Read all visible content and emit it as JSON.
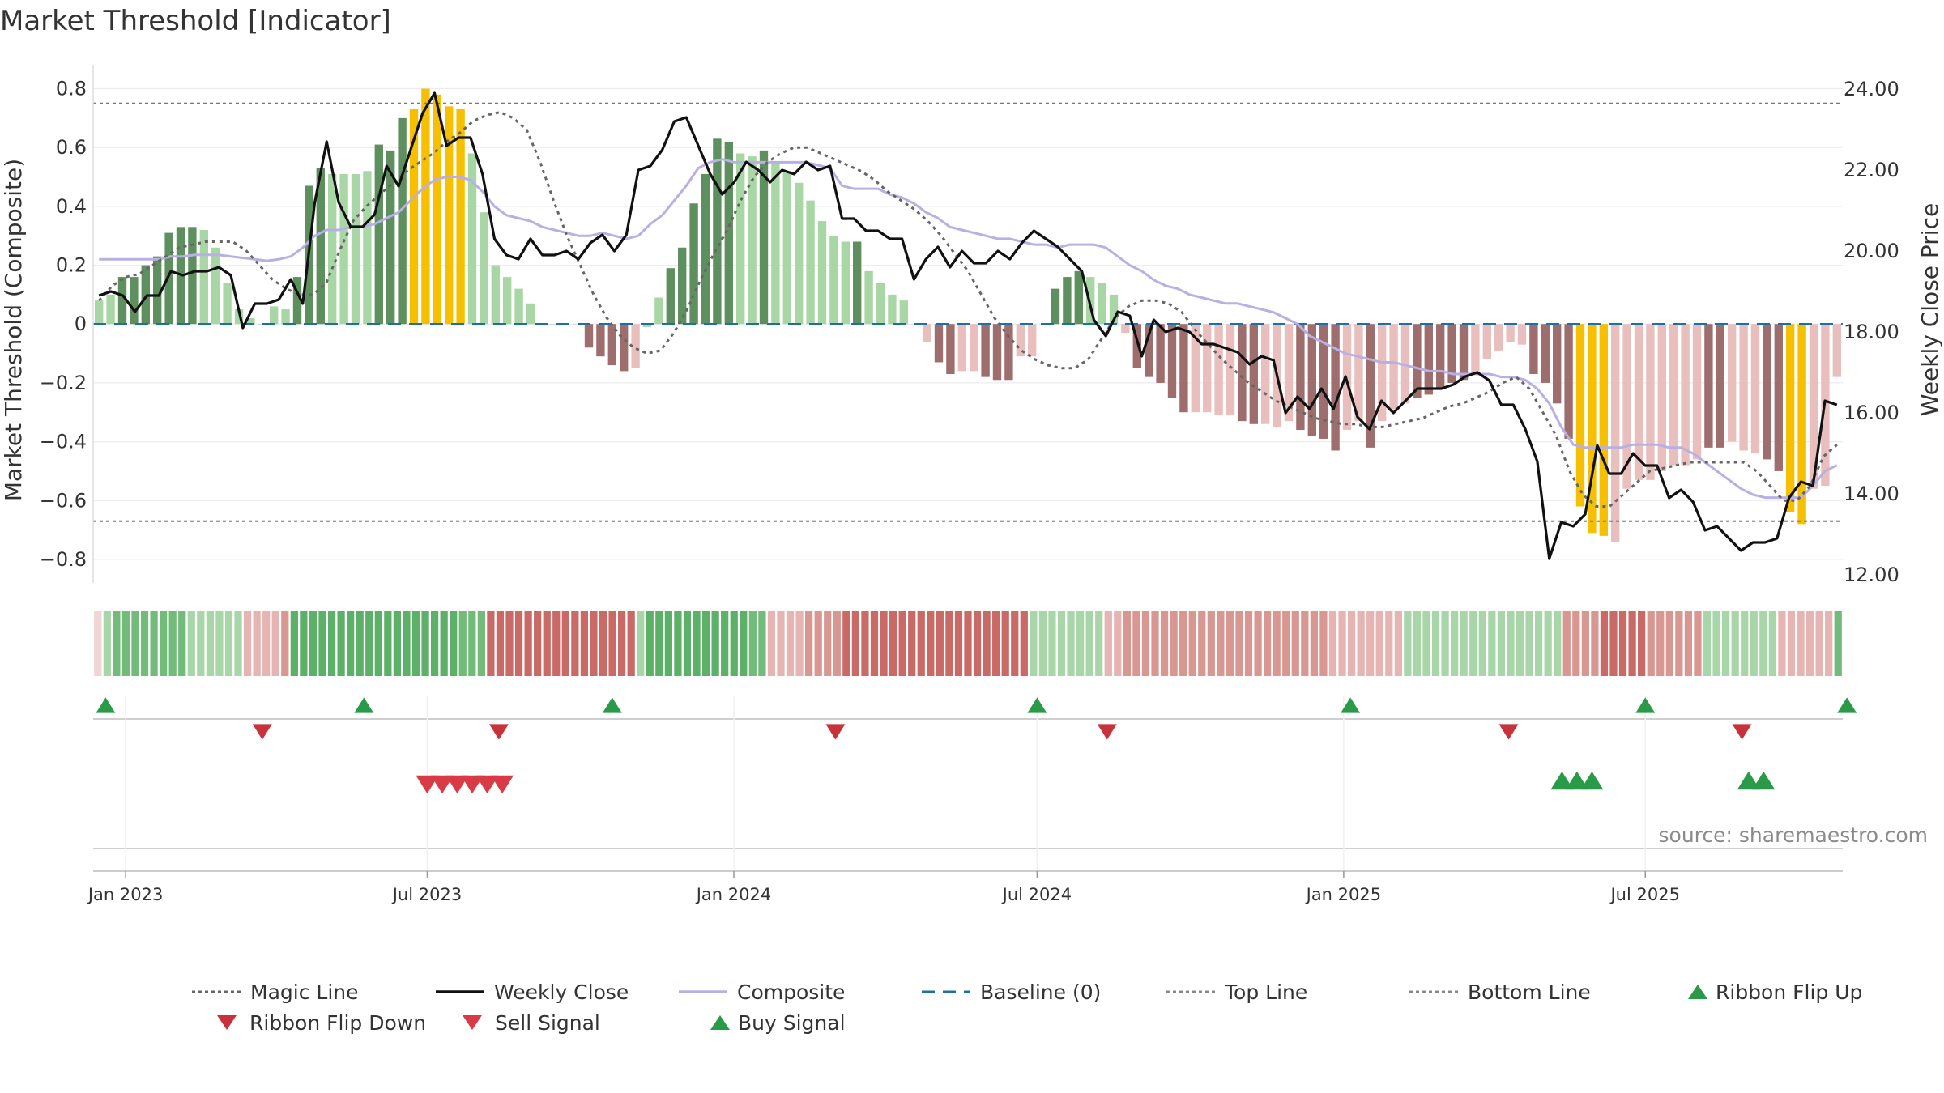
{
  "title": "Market Threshold [Indicator]",
  "source": "source: sharemaestro.com",
  "colors": {
    "gain_strong": "#5e8f5e",
    "gain_weak": "#a9d6a5",
    "loss_strong": "#9e6d6d",
    "loss_weak": "#e9bfbd",
    "extreme": "#f6c000",
    "close": "#111111",
    "composite": "#b8b0e4",
    "magic": "#666666",
    "baseline": "#1f6fa6",
    "buy": "#2a9a48",
    "sell": "#d93a46"
  },
  "chart_data": {
    "type": "bar",
    "title": "Market Threshold [Indicator]",
    "ylabel": "Market Threshold (Composite)",
    "y2label": "Weekly Close Price",
    "ylim": [
      -0.88,
      0.84
    ],
    "y2lim": [
      11.8,
      24.3
    ],
    "yticks": [
      0.8,
      0.6,
      0.4,
      0.2,
      0,
      -0.2,
      -0.4,
      -0.6,
      -0.8
    ],
    "ytick_labels": [
      "0.8",
      "0.6",
      "0.4",
      "0.2",
      "0",
      "−0.2",
      "−0.4",
      "−0.6",
      "−0.8"
    ],
    "y2ticks": [
      24,
      22,
      20,
      18,
      16,
      14,
      12
    ],
    "y2tick_labels": [
      "24.00",
      "22.00",
      "20.00",
      "18.00",
      "16.00",
      "14.00",
      "12.00"
    ],
    "x_start": "2022-12-16",
    "x_step": "1 week",
    "x_ticks": [
      {
        "date": "2023-01-01",
        "label": "Jan 2023"
      },
      {
        "date": "2023-07-01",
        "label": "Jul 2023"
      },
      {
        "date": "2024-01-01",
        "label": "Jan 2024"
      },
      {
        "date": "2024-07-01",
        "label": "Jul 2024"
      },
      {
        "date": "2025-01-01",
        "label": "Jan 2025"
      },
      {
        "date": "2025-07-01",
        "label": "Jul 2025"
      }
    ],
    "top_line": 0.75,
    "bottom_line": -0.67,
    "grid": true,
    "legend_position": "bottom",
    "legend": [
      {
        "name": "Magic Line",
        "kind": "dotted",
        "color": "#666666"
      },
      {
        "name": "Weekly Close",
        "kind": "solid",
        "color": "#111111"
      },
      {
        "name": "Composite",
        "kind": "solid",
        "color": "#b8b0e4"
      },
      {
        "name": "Baseline (0)",
        "kind": "dashed",
        "color": "#1f6fa6"
      },
      {
        "name": "Top Line",
        "kind": "dotted",
        "color": "#888888"
      },
      {
        "name": "Bottom Line",
        "kind": "dotted",
        "color": "#888888"
      },
      {
        "name": "Ribbon Flip Up",
        "kind": "tri-up",
        "color": "#2a9a48"
      },
      {
        "name": "Ribbon Flip Down",
        "kind": "tri-down",
        "color": "#c8323a"
      },
      {
        "name": "Sell Signal",
        "kind": "tri-down",
        "color": "#d93a46"
      },
      {
        "name": "Buy Signal",
        "kind": "tri-up",
        "color": "#2a9a48"
      }
    ],
    "bars": [
      0.08,
      0.1,
      0.16,
      0.16,
      0.2,
      0.23,
      0.31,
      0.33,
      0.33,
      0.32,
      0.26,
      0.14,
      0.05,
      0.02,
      0,
      0.06,
      0.05,
      0.16,
      0.47,
      0.53,
      0.51,
      0.51,
      0.51,
      0.52,
      0.61,
      0.59,
      0.7,
      0.73,
      0.8,
      0.78,
      0.74,
      0.73,
      0.58,
      0.38,
      0.2,
      0.16,
      0.12,
      0.07,
      0,
      0,
      0,
      0,
      -0.08,
      -0.11,
      -0.14,
      -0.16,
      -0.15,
      -0.01,
      0.09,
      0.19,
      0.26,
      0.41,
      0.51,
      0.63,
      0.62,
      0.58,
      0.57,
      0.59,
      0.55,
      0.52,
      0.48,
      0.42,
      0.35,
      0.3,
      0.28,
      0.28,
      0.18,
      0.14,
      0.1,
      0.08,
      0,
      -0.06,
      -0.13,
      -0.17,
      -0.16,
      -0.16,
      -0.18,
      -0.19,
      -0.19,
      -0.11,
      -0.11,
      0,
      0.12,
      0.16,
      0.18,
      0.16,
      0.14,
      0.1,
      -0.03,
      -0.15,
      -0.18,
      -0.2,
      -0.25,
      -0.3,
      -0.3,
      -0.3,
      -0.31,
      -0.31,
      -0.33,
      -0.34,
      -0.34,
      -0.35,
      -0.33,
      -0.36,
      -0.38,
      -0.39,
      -0.43,
      -0.36,
      -0.33,
      -0.42,
      -0.33,
      -0.29,
      -0.27,
      -0.25,
      -0.24,
      -0.22,
      -0.2,
      -0.19,
      -0.17,
      -0.12,
      -0.09,
      -0.06,
      -0.07,
      -0.17,
      -0.2,
      -0.27,
      -0.39,
      -0.62,
      -0.71,
      -0.72,
      -0.74,
      -0.56,
      -0.53,
      -0.53,
      -0.5,
      -0.48,
      -0.48,
      -0.46,
      -0.42,
      -0.42,
      -0.4,
      -0.43,
      -0.44,
      -0.46,
      -0.5,
      -0.64,
      -0.68,
      -0.56,
      -0.55,
      -0.18
    ],
    "bar_style": [
      "gw",
      "gw",
      "gs",
      "gs",
      "gs",
      "gs",
      "gs",
      "gs",
      "gs",
      "gw",
      "gw",
      "gw",
      "gw",
      "gw",
      "gw",
      "gw",
      "gw",
      "gs",
      "gs",
      "gs",
      "gw",
      "gw",
      "gw",
      "gw",
      "gs",
      "gs",
      "gs",
      "ex",
      "ex",
      "ex",
      "ex",
      "ex",
      "gw",
      "gw",
      "gw",
      "gw",
      "gw",
      "gw",
      "gw",
      "gw",
      "gw",
      "gw",
      "ls",
      "ls",
      "ls",
      "ls",
      "lw",
      "gw",
      "gw",
      "gs",
      "gs",
      "gs",
      "gs",
      "gs",
      "gs",
      "gw",
      "gw",
      "gs",
      "gw",
      "gw",
      "gw",
      "gw",
      "gw",
      "gw",
      "gw",
      "gs",
      "gw",
      "gw",
      "gw",
      "gw",
      "gw",
      "lw",
      "ls",
      "ls",
      "lw",
      "lw",
      "ls",
      "ls",
      "ls",
      "lw",
      "lw",
      "gw",
      "gs",
      "gs",
      "gs",
      "gw",
      "gw",
      "gw",
      "lw",
      "ls",
      "ls",
      "ls",
      "ls",
      "ls",
      "lw",
      "lw",
      "lw",
      "lw",
      "ls",
      "ls",
      "lw",
      "lw",
      "lw",
      "ls",
      "ls",
      "ls",
      "ls",
      "lw",
      "lw",
      "ls",
      "lw",
      "lw",
      "lw",
      "ls",
      "ls",
      "ls",
      "ls",
      "ls",
      "lw",
      "lw",
      "lw",
      "lw",
      "lw",
      "ls",
      "ls",
      "ls",
      "ls",
      "ex",
      "ex",
      "ex",
      "lw",
      "lw",
      "lw",
      "lw",
      "lw",
      "lw",
      "lw",
      "lw",
      "ls",
      "ls",
      "lw",
      "lw",
      "lw",
      "ls",
      "ls",
      "ex",
      "ex",
      "lw",
      "lw",
      "lw"
    ],
    "weekly_close": [
      18.9,
      19,
      18.9,
      18.5,
      18.9,
      18.9,
      19.5,
      19.4,
      19.5,
      19.5,
      19.6,
      19.4,
      18.1,
      18.7,
      18.7,
      18.8,
      19.3,
      18.7,
      21.2,
      22.7,
      21.2,
      20.6,
      20.6,
      20.9,
      22.1,
      21.6,
      22.5,
      23.4,
      23.9,
      22.6,
      22.8,
      22.8,
      21.9,
      20.3,
      19.9,
      19.8,
      20.3,
      19.9,
      19.9,
      20,
      19.8,
      20.2,
      20.4,
      20.0,
      20.4,
      22,
      22.1,
      22.5,
      23.2,
      23.3,
      22.6,
      21.9,
      21.4,
      21.7,
      22.2,
      22,
      21.7,
      22,
      21.9,
      22.2,
      22.0,
      22.1,
      20.8,
      20.8,
      20.5,
      20.5,
      20.3,
      20.3,
      19.3,
      19.8,
      20.1,
      19.6,
      20.0,
      19.7,
      19.7,
      20.0,
      19.8,
      20.2,
      20.5,
      20.3,
      20.1,
      19.8,
      19.5,
      18.3,
      17.9,
      18.5,
      18.4,
      17.4,
      18.3,
      18.0,
      18.1,
      18.0,
      17.7,
      17.7,
      17.6,
      17.5,
      17.2,
      17.4,
      17.3,
      16.0,
      16.4,
      16.1,
      16.6,
      16.1,
      16.9,
      15.9,
      15.6,
      16.3,
      16.0,
      16.3,
      16.6,
      16.6,
      16.6,
      16.7,
      16.9,
      17.0,
      16.8,
      16.2,
      16.2,
      15.6,
      14.8,
      12.4,
      13.3,
      13.2,
      13.5,
      15.2,
      14.5,
      14.5,
      15.0,
      14.7,
      14.7,
      13.9,
      14.1,
      13.8,
      13.1,
      13.2,
      12.9,
      12.6,
      12.8,
      12.8,
      12.9,
      13.9,
      14.3,
      14.2,
      16.3,
      16.2
    ],
    "composite": [
      0.22,
      0.22,
      0.22,
      0.22,
      0.22,
      0.22,
      0.23,
      0.23,
      0.235,
      0.235,
      0.235,
      0.23,
      0.225,
      0.22,
      0.215,
      0.22,
      0.23,
      0.26,
      0.3,
      0.32,
      0.32,
      0.33,
      0.33,
      0.34,
      0.36,
      0.38,
      0.42,
      0.46,
      0.49,
      0.5,
      0.5,
      0.49,
      0.45,
      0.4,
      0.37,
      0.36,
      0.35,
      0.33,
      0.32,
      0.31,
      0.3,
      0.3,
      0.31,
      0.3,
      0.29,
      0.3,
      0.34,
      0.37,
      0.42,
      0.47,
      0.53,
      0.55,
      0.56,
      0.55,
      0.55,
      0.55,
      0.55,
      0.55,
      0.55,
      0.55,
      0.54,
      0.53,
      0.47,
      0.46,
      0.46,
      0.46,
      0.44,
      0.43,
      0.41,
      0.38,
      0.36,
      0.33,
      0.32,
      0.31,
      0.3,
      0.29,
      0.29,
      0.28,
      0.27,
      0.27,
      0.26,
      0.27,
      0.27,
      0.27,
      0.26,
      0.23,
      0.2,
      0.18,
      0.15,
      0.13,
      0.12,
      0.1,
      0.09,
      0.08,
      0.07,
      0.07,
      0.06,
      0.05,
      0.04,
      0.02,
      0,
      -0.04,
      -0.06,
      -0.08,
      -0.1,
      -0.11,
      -0.12,
      -0.13,
      -0.13,
      -0.14,
      -0.15,
      -0.16,
      -0.16,
      -0.17,
      -0.17,
      -0.17,
      -0.17,
      -0.18,
      -0.18,
      -0.19,
      -0.22,
      -0.27,
      -0.35,
      -0.41,
      -0.42,
      -0.42,
      -0.42,
      -0.42,
      -0.41,
      -0.41,
      -0.41,
      -0.42,
      -0.42,
      -0.44,
      -0.47,
      -0.5,
      -0.53,
      -0.56,
      -0.58,
      -0.59,
      -0.59,
      -0.59,
      -0.59,
      -0.55,
      -0.5,
      -0.48
    ],
    "magic_line": [
      0.08,
      0.13,
      0.16,
      0.17,
      0.2,
      0.23,
      0.26,
      0.27,
      0.28,
      0.28,
      0.28,
      0.25,
      0.2,
      0.15,
      0.12,
      0.1,
      0.1,
      0.14,
      0.25,
      0.35,
      0.4,
      0.44,
      0.48,
      0.52,
      0.55,
      0.58,
      0.62,
      0.65,
      0.69,
      0.71,
      0.72,
      0.7,
      0.66,
      0.55,
      0.42,
      0.3,
      0.2,
      0.1,
      0.02,
      -0.04,
      -0.08,
      -0.1,
      -0.09,
      -0.03,
      0.05,
      0.15,
      0.24,
      0.32,
      0.42,
      0.5,
      0.55,
      0.58,
      0.6,
      0.6,
      0.58,
      0.56,
      0.54,
      0.52,
      0.49,
      0.45,
      0.42,
      0.39,
      0.35,
      0.3,
      0.24,
      0.18,
      0.1,
      0.02,
      -0.04,
      -0.09,
      -0.12,
      -0.14,
      -0.15,
      -0.15,
      -0.12,
      -0.05,
      0.02,
      0.06,
      0.08,
      0.08,
      0.07,
      0.04,
      -0.02,
      -0.07,
      -0.12,
      -0.16,
      -0.2,
      -0.23,
      -0.26,
      -0.28,
      -0.3,
      -0.32,
      -0.33,
      -0.34,
      -0.34,
      -0.35,
      -0.35,
      -0.34,
      -0.33,
      -0.32,
      -0.3,
      -0.28,
      -0.27,
      -0.25,
      -0.23,
      -0.2,
      -0.18,
      -0.22,
      -0.3,
      -0.38,
      -0.5,
      -0.58,
      -0.62,
      -0.62,
      -0.58,
      -0.54,
      -0.5,
      -0.49,
      -0.48,
      -0.47,
      -0.47,
      -0.47,
      -0.47,
      -0.47,
      -0.5,
      -0.55,
      -0.6,
      -0.6,
      -0.55,
      -0.45,
      -0.41
    ],
    "ribbon": [
      0,
      1,
      2,
      2,
      2,
      2,
      2,
      2,
      2,
      2,
      1,
      1,
      1,
      1,
      1,
      1,
      -1,
      -1,
      -1,
      -1,
      -2,
      3,
      3,
      3,
      3,
      3,
      3,
      3,
      3,
      3,
      3,
      3,
      3,
      3,
      3,
      3,
      3,
      3,
      3,
      2,
      2,
      2,
      -3,
      -3,
      -3,
      -3,
      -3,
      -3,
      -3,
      -3,
      -3,
      -3,
      -3,
      -3,
      -3,
      -3,
      -3,
      -3,
      1,
      3,
      3,
      3,
      3,
      3,
      3,
      3,
      3,
      3,
      3,
      3,
      2,
      2,
      -1,
      -1,
      -1,
      -1,
      -2,
      -2,
      -2,
      -2,
      -3,
      -3,
      -3,
      -3,
      -3,
      -3,
      -3,
      -3,
      -3,
      -3,
      -3,
      -3,
      -3,
      -3,
      -3,
      -3,
      -3,
      -3,
      -3,
      -3,
      1,
      1,
      1,
      1,
      1,
      1,
      1,
      1,
      -1,
      -1,
      -2,
      -2,
      -2,
      -2,
      -2,
      -2,
      -2,
      -2,
      -2,
      -2,
      -2,
      -2,
      -2,
      -2,
      -2,
      -2,
      -2,
      -2,
      -2,
      -2,
      -2,
      -2,
      -1,
      -1,
      -1,
      -1,
      -1,
      -1,
      -1,
      -1,
      1,
      1,
      1,
      1,
      1,
      1,
      1,
      1,
      1,
      1,
      1,
      1,
      1,
      1,
      1,
      1,
      1,
      -2,
      -2,
      -2,
      -2,
      -3,
      -3,
      -3,
      -3,
      -3,
      -2,
      -2,
      -2,
      -2,
      -2,
      -2,
      1,
      1,
      1,
      1,
      1,
      1,
      1,
      1,
      -1,
      -1,
      -1,
      -1,
      -1,
      -1,
      2
    ],
    "ribbon_flip_up": [
      "2022-12-20",
      "2023-05-24",
      "2023-10-20",
      "2024-07-01",
      "2025-01-05",
      "2025-07-01",
      "2025-10-30"
    ],
    "ribbon_flip_down": [
      "2023-03-24",
      "2023-08-13",
      "2024-03-02",
      "2024-08-12",
      "2025-04-10",
      "2025-08-28"
    ],
    "sell_signal": [
      "2023-07-01",
      "2023-07-10",
      "2023-07-19",
      "2023-07-28",
      "2023-08-06",
      "2023-08-15"
    ],
    "buy_signal": [
      "2025-05-12",
      "2025-05-21",
      "2025-05-30",
      "2025-09-01",
      "2025-09-10"
    ]
  }
}
